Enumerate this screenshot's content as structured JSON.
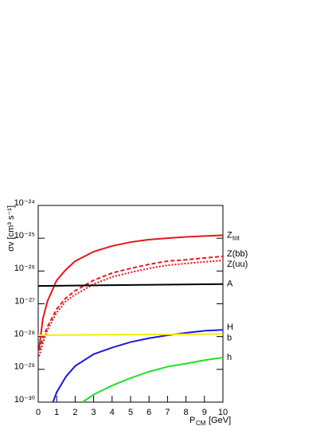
{
  "chart_data": {
    "type": "line",
    "y_label": "σv [cm³ s⁻¹]",
    "x_label": "P",
    "x_label_subscript": "CM",
    "x_label_unit": "[GeV]",
    "xlim": [
      0,
      10
    ],
    "xticks": [
      0,
      1,
      2,
      3,
      4,
      5,
      6,
      7,
      8,
      9,
      10
    ],
    "ylim": [
      1e-30,
      1e-24
    ],
    "log_y": true,
    "yticks": [
      {
        "value": 1e-30,
        "label": "10⁻³⁰"
      },
      {
        "value": 1e-29,
        "label": "10⁻²⁹"
      },
      {
        "value": 1e-28,
        "label": "10⁻²⁸"
      },
      {
        "value": 1e-27,
        "label": "10⁻²⁷"
      },
      {
        "value": 1e-26,
        "label": "10⁻²⁶"
      },
      {
        "value": 1e-25,
        "label": "10⁻²⁵"
      },
      {
        "value": 1e-24,
        "label": "10⁻²⁴"
      }
    ],
    "series": [
      {
        "name": "Z",
        "name_subscript": "tot",
        "color": "#e8141c",
        "style": "solid",
        "x": [
          0.05,
          0.25,
          0.5,
          1,
          1.5,
          2,
          3,
          4,
          5,
          6,
          7,
          8,
          9,
          10
        ],
        "values": [
          4.3e-29,
          3.5e-28,
          1.2e-27,
          5.2e-27,
          1.1e-26,
          2e-26,
          3.9e-26,
          5.8e-26,
          7.6e-26,
          9.1e-26,
          1e-25,
          1.1e-25,
          1.17e-25,
          1.23e-25
        ]
      },
      {
        "name": "Z(bb)",
        "color": "#e8141c",
        "style": "dashed",
        "x": [
          0.05,
          0.25,
          0.5,
          1,
          1.5,
          2,
          3,
          4,
          5,
          6,
          7,
          8,
          9,
          10
        ],
        "values": [
          3.8e-29,
          8.9e-29,
          2e-28,
          6.9e-28,
          1.5e-27,
          2.5e-27,
          5.2e-27,
          8.7e-27,
          1.2e-26,
          1.6e-26,
          2e-26,
          2.2e-26,
          2.5e-26,
          2.8e-26
        ]
      },
      {
        "name": "Z(uu)",
        "color": "#e8141c",
        "style": "dotted",
        "x": [
          0.05,
          0.25,
          0.5,
          1,
          1.5,
          2,
          3,
          4,
          5,
          6,
          7,
          8,
          9,
          10
        ],
        "values": [
          2.5e-29,
          6.3e-29,
          1.6e-28,
          5.4e-28,
          1.2e-27,
          1.9e-27,
          4e-27,
          6.6e-27,
          9.1e-27,
          1.2e-26,
          1.5e-26,
          1.7e-26,
          1.9e-26,
          2.1e-26
        ]
      },
      {
        "name": "A",
        "color": "#000000",
        "style": "solid",
        "x": [
          0,
          10
        ],
        "values": [
          3.5e-27,
          4e-27
        ]
      },
      {
        "name": "H",
        "color": "#1a1adb",
        "style": "solid",
        "x": [
          0.8,
          1,
          1.5,
          2,
          3,
          4,
          5,
          6,
          7,
          8,
          9,
          10
        ],
        "values": [
          1e-30,
          2e-30,
          6e-30,
          1.26e-29,
          2.9e-29,
          4.6e-29,
          6.8e-29,
          8.9e-29,
          1.1e-28,
          1.3e-28,
          1.5e-28,
          1.6e-28
        ]
      },
      {
        "name": "b",
        "color": "#f0f000",
        "style": "solid",
        "x": [
          0,
          10
        ],
        "values": [
          1.1e-28,
          1.2e-28
        ]
      },
      {
        "name": "h",
        "color": "#22e022",
        "style": "solid",
        "x": [
          2.4,
          3,
          4,
          5,
          6,
          7,
          8,
          9,
          10
        ],
        "values": [
          1e-30,
          1.7e-30,
          3.2e-30,
          5.4e-30,
          8.5e-30,
          1.2e-29,
          1.5e-29,
          1.9e-29,
          2.3e-29
        ]
      }
    ]
  }
}
